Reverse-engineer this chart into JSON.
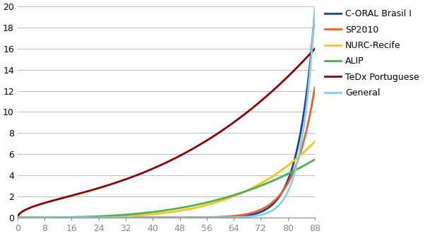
{
  "title": "",
  "xlabel": "",
  "ylabel": "",
  "xlim": [
    0,
    88
  ],
  "ylim": [
    0,
    20
  ],
  "yticks": [
    0,
    2,
    4,
    6,
    8,
    10,
    12,
    14,
    16,
    18,
    20
  ],
  "xticks": [
    0,
    8,
    16,
    24,
    32,
    40,
    48,
    56,
    64,
    72,
    80,
    88
  ],
  "series": [
    {
      "label": "C-ORAL Brasil I",
      "color": "#1F3F8F",
      "linewidth": 2.0,
      "max_val": 19.5,
      "power": 18.0
    },
    {
      "label": "SP2010",
      "color": "#E8622A",
      "linewidth": 2.0,
      "max_val": 12.3,
      "power": 14.0
    },
    {
      "label": "NURC-Recife",
      "color": "#F5C518",
      "linewidth": 2.0,
      "max_val": 7.2,
      "power": 4.0
    },
    {
      "label": "ALIP",
      "color": "#4CAF50",
      "linewidth": 2.0,
      "max_val": 5.5,
      "power": 3.0
    },
    {
      "label": "TeDx Portuguese",
      "color": "#8B0000",
      "linewidth": 2.0,
      "max_val": 16.0,
      "power": -1.0
    },
    {
      "label": "General",
      "color": "#87CEEB",
      "linewidth": 2.0,
      "max_val": 19.8,
      "power": 22.0
    }
  ],
  "background_color": "#FFFFFF",
  "grid_color": "#C0C0C0",
  "legend_fontsize": 9,
  "tick_fontsize": 9,
  "figsize": [
    6.02,
    3.34
  ],
  "dpi": 100
}
